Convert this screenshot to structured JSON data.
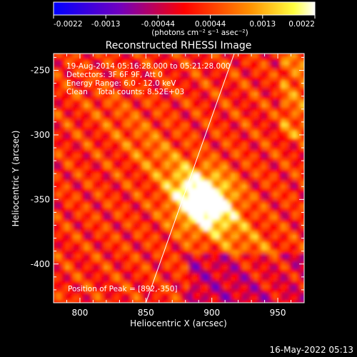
{
  "chart_data": {
    "type": "heatmap",
    "title": "Reconstructed RHESSI Image",
    "xlabel": "Heliocentric X (arcsec)",
    "ylabel": "Heliocentric Y (arcsec)",
    "xlim": [
      780,
      970
    ],
    "ylim": [
      -430,
      -237
    ],
    "x_ticks": [
      800,
      850,
      900,
      950
    ],
    "y_ticks": [
      -400,
      -350,
      -300,
      -250
    ],
    "colorbar": {
      "ticks": [
        "-0.0022",
        "-0.0013",
        "-0.00044",
        "0.00044",
        "0.0013",
        "0.0022"
      ],
      "range": [
        -0.0022,
        0.0022
      ],
      "unit_label": "(photons cm⁻² s⁻¹ asec⁻²)"
    },
    "annotations": [
      "19-Aug-2014 05:16:28.000 to 05:21:28.000",
      "Detectors: 3F 6F 9F, Att 0",
      "Energy Range: 6.0 - 12.0 keV",
      "Clean    Total counts: 8.52E+03"
    ],
    "peak": {
      "label": "Position of Peak = [892,-350]",
      "x": 892,
      "y": -350
    },
    "limb_line": {
      "x": [
        850,
        917
      ],
      "y": [
        -430,
        -237
      ]
    },
    "footer_timestamp": "16-May-2022 05:13"
  },
  "colors": {
    "background": "#000000",
    "text": "#ffffff",
    "colormap": [
      "#0000ff",
      "#8000c0",
      "#ff0000",
      "#ff8000",
      "#ffff00",
      "#ffffff"
    ]
  }
}
